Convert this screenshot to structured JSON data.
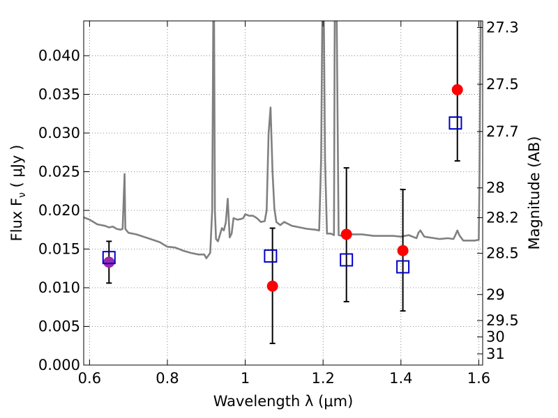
{
  "chart_data": {
    "type": "scatter",
    "xlabel": "Wavelength  λ (μm)",
    "ylabel": "Flux  F",
    "ylabel_sub": "ν",
    "ylabel_unit": "  ( μJy )",
    "ylabel_right": "Magnitude (AB)",
    "xlim": [
      0.585,
      1.61
    ],
    "ylim": [
      0.0,
      0.0445
    ],
    "grid": true,
    "x_ticks": [
      0.6,
      0.8,
      1.0,
      1.2,
      1.4,
      1.6
    ],
    "x_tick_labels": [
      "0.6",
      "0.8",
      "1",
      "1.2",
      "1.4",
      "1.6"
    ],
    "y_ticks": [
      0.0,
      0.005,
      0.01,
      0.015,
      0.02,
      0.025,
      0.03,
      0.035,
      0.04
    ],
    "y_tick_labels": [
      "0.000",
      "0.005",
      "0.010",
      "0.015",
      "0.020",
      "0.025",
      "0.030",
      "0.035",
      "0.040"
    ],
    "right_ticks": [
      27.3,
      27.5,
      27.7,
      28,
      28.2,
      28.5,
      29,
      29.5,
      30,
      31
    ],
    "right_tick_labels": [
      "27.3",
      "27.5",
      "27.7",
      "28",
      "28.2",
      "28.5",
      "29",
      "29.5",
      "30",
      "31"
    ],
    "series": [
      {
        "kind": "line",
        "color": "#808080",
        "x": [
          0.585,
          0.6,
          0.62,
          0.63,
          0.64,
          0.65,
          0.66,
          0.67,
          0.68,
          0.685,
          0.69,
          0.692,
          0.695,
          0.7,
          0.72,
          0.75,
          0.78,
          0.8,
          0.82,
          0.84,
          0.86,
          0.88,
          0.895,
          0.9,
          0.91,
          0.915,
          0.918,
          0.92,
          0.922,
          0.925,
          0.93,
          0.94,
          0.945,
          0.95,
          0.955,
          0.96,
          0.965,
          0.97,
          0.98,
          0.99,
          0.995,
          1.0,
          1.01,
          1.02,
          1.03,
          1.04,
          1.05,
          1.055,
          1.06,
          1.065,
          1.07,
          1.075,
          1.08,
          1.09,
          1.1,
          1.12,
          1.14,
          1.16,
          1.18,
          1.19,
          1.195,
          1.198,
          1.2,
          1.202,
          1.205,
          1.21,
          1.22,
          1.228,
          1.23,
          1.232,
          1.235,
          1.24,
          1.25,
          1.27,
          1.3,
          1.33,
          1.36,
          1.38,
          1.4,
          1.42,
          1.44,
          1.445,
          1.45,
          1.46,
          1.5,
          1.52,
          1.535,
          1.54,
          1.545,
          1.55,
          1.56,
          1.58,
          1.59,
          1.6,
          1.602,
          1.605,
          1.61
        ],
        "y": [
          0.0191,
          0.0188,
          0.0182,
          0.0181,
          0.018,
          0.0178,
          0.0179,
          0.0176,
          0.0175,
          0.0176,
          0.0247,
          0.0176,
          0.0174,
          0.0171,
          0.0169,
          0.0164,
          0.0159,
          0.0153,
          0.0152,
          0.0148,
          0.0145,
          0.0143,
          0.0143,
          0.0138,
          0.0145,
          0.02,
          0.045,
          0.045,
          0.02,
          0.0163,
          0.016,
          0.0177,
          0.0174,
          0.0184,
          0.0215,
          0.0165,
          0.017,
          0.019,
          0.0188,
          0.0189,
          0.019,
          0.0195,
          0.0193,
          0.0193,
          0.019,
          0.0185,
          0.0186,
          0.02,
          0.03,
          0.0333,
          0.025,
          0.0202,
          0.0185,
          0.0181,
          0.0185,
          0.018,
          0.0178,
          0.0176,
          0.0175,
          0.0174,
          0.0266,
          0.045,
          0.045,
          0.045,
          0.0266,
          0.017,
          0.017,
          0.0168,
          0.045,
          0.045,
          0.045,
          0.0168,
          0.0167,
          0.0169,
          0.0169,
          0.0167,
          0.0167,
          0.0167,
          0.0166,
          0.0168,
          0.0164,
          0.0171,
          0.0174,
          0.0166,
          0.0163,
          0.0164,
          0.0163,
          0.0168,
          0.0174,
          0.0168,
          0.0161,
          0.0161,
          0.0161,
          0.0162,
          0.025,
          0.045,
          0.045
        ]
      },
      {
        "kind": "points",
        "marker": "circle",
        "color": "#ff0000",
        "x": [
          1.07,
          1.26,
          1.405,
          1.545
        ],
        "y": [
          0.0102,
          0.0169,
          0.0148,
          0.0356
        ],
        "err_lo": [
          0.0074,
          0.0087,
          0.0078,
          0.0092
        ],
        "err_hi": [
          0.0075,
          0.0086,
          0.0079,
          0.0092
        ]
      },
      {
        "kind": "points",
        "marker": "circle",
        "color": "#9c27b0",
        "x": [
          0.65
        ],
        "y": [
          0.0133
        ],
        "err_lo": [
          0.0027
        ],
        "err_hi": [
          0.0027
        ]
      },
      {
        "kind": "points",
        "marker": "square-open",
        "color": "#0000c8",
        "x": [
          0.65,
          1.065,
          1.26,
          1.405,
          1.54
        ],
        "y": [
          0.0139,
          0.0141,
          0.0136,
          0.0127,
          0.0313
        ]
      }
    ]
  }
}
